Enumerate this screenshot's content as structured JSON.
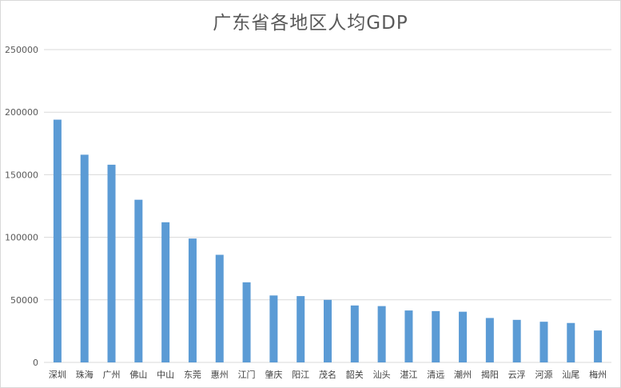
{
  "chart_data": {
    "type": "bar",
    "title": "广东省各地区人均GDP",
    "xlabel": "",
    "ylabel": "",
    "ylim": [
      0,
      250000
    ],
    "yticks": [
      0,
      50000,
      100000,
      150000,
      200000,
      250000
    ],
    "grid": true,
    "legend": "none",
    "bar_color": "#5b9bd5",
    "categories": [
      "深圳",
      "珠海",
      "广州",
      "佛山",
      "中山",
      "东莞",
      "惠州",
      "江门",
      "肇庆",
      "阳江",
      "茂名",
      "韶关",
      "汕头",
      "湛江",
      "清远",
      "潮州",
      "揭阳",
      "云浮",
      "河源",
      "汕尾",
      "梅州"
    ],
    "values": [
      194000,
      166000,
      158000,
      130000,
      112000,
      99000,
      86000,
      64000,
      53500,
      53000,
      50000,
      45500,
      45000,
      41500,
      41000,
      40500,
      35500,
      34000,
      32500,
      31500,
      25500
    ]
  }
}
